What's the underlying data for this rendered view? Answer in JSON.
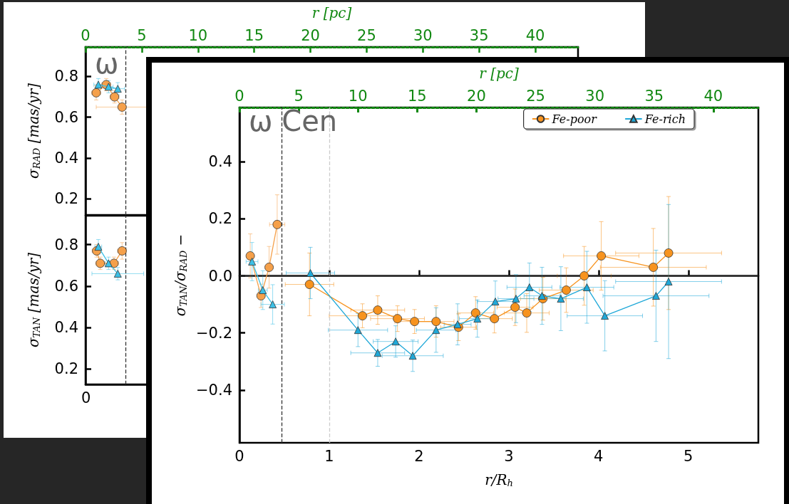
{
  "chart_data": [
    {
      "type": "line",
      "title": "ω",
      "ylabel": "σ$_{RAD}$ [mas/yr]",
      "xlabel": "r [pc]",
      "xlim": [
        0,
        43.8
      ],
      "xticks": [
        0,
        5,
        10,
        15,
        20,
        25,
        30,
        35,
        40
      ],
      "ylim": [
        0.12,
        0.945
      ],
      "yticks": [
        0.2,
        0.4,
        0.6,
        0.8
      ],
      "grid": false,
      "legend": false,
      "ref_lines": [
        {
          "axis": "x",
          "value": 3.57,
          "color": "#333333",
          "line_style": "dashed"
        }
      ],
      "series": [
        {
          "color": "#f5a04a",
          "marker": "circle",
          "x": [
            0.95,
            1.84,
            2.58,
            3.25
          ],
          "values": [
            0.72,
            0.76,
            0.7,
            0.65
          ],
          "errors": [
            0.035,
            0.03,
            0.03,
            0.035
          ],
          "xerrors": [
            0.4,
            0.4,
            0.4,
            2.3
          ]
        },
        {
          "color": "#3cc0e6",
          "marker": "triangle",
          "x": [
            1.14,
            2.05,
            2.87
          ],
          "values": [
            0.76,
            0.75,
            0.74
          ],
          "errors": [
            0.03,
            0.03,
            0.03
          ],
          "xerrors": [
            0.4,
            0.4,
            0.6
          ]
        }
      ]
    },
    {
      "type": "line",
      "ylabel": "σ$_{TAN}$ [mas/yr]",
      "xlim": [
        0,
        43.8
      ],
      "ylim": [
        0.125,
        0.94
      ],
      "yticks": [
        0.2,
        0.4,
        0.6,
        0.8
      ],
      "tick_labels": "y",
      "grid": false,
      "legend": false,
      "annotations": [
        "0"
      ],
      "ref_lines": [
        {
          "axis": "x",
          "value": 3.57,
          "color": "#333333",
          "line_style": "dashed"
        }
      ],
      "series": [
        {
          "color": "#f5a04a",
          "marker": "circle",
          "x": [
            0.99,
            1.31,
            2.53,
            3.25
          ],
          "values": [
            0.77,
            0.71,
            0.71,
            0.77
          ],
          "errors": [
            0.03,
            0.03,
            0.03,
            0.04
          ],
          "xerrors": [
            0.4,
            0.4,
            0.4,
            0.4
          ]
        },
        {
          "color": "#3cc0e6",
          "marker": "triangle",
          "x": [
            1.14,
            2.05,
            2.87
          ],
          "values": [
            0.79,
            0.71,
            0.66
          ],
          "errors": [
            0.035,
            0.03,
            0.03
          ],
          "xerrors": [
            0.3,
            0.3,
            2.3
          ]
        }
      ]
    },
    {
      "type": "line",
      "title": "ω Cen",
      "xlabel": "r/R$_{h}$",
      "ylabel": "σ$_{TAN}$/σ$_{RAD}$ −",
      "x2label": "r [pc]",
      "xlim": [
        0,
        5.78
      ],
      "xticks": [
        0,
        1,
        2,
        3,
        4,
        5
      ],
      "x2lim": [
        0,
        43.8
      ],
      "x2ticks": [
        0,
        5,
        10,
        15,
        20,
        25,
        30,
        35,
        40
      ],
      "ylim": [
        -0.585,
        0.59
      ],
      "yticks": [
        {
          "value": -0.4,
          "label": "−0.4"
        },
        {
          "value": -0.2,
          "label": "−0.2"
        },
        {
          "value": 0,
          "label": "0.0"
        },
        {
          "value": 0.2,
          "label": "0.2"
        },
        {
          "value": 0.4,
          "label": "0.4"
        }
      ],
      "grid": false,
      "legend": "top right",
      "ref_lines": [
        {
          "axis": "x",
          "value": 0.47,
          "color": "#333333",
          "line_style": "dashed"
        },
        {
          "axis": "x",
          "value": 1,
          "color": "#cccccc",
          "line_style": "dashed"
        },
        {
          "axis": "y",
          "value": 0,
          "color": "#333333",
          "line_style": "solid"
        }
      ],
      "series": [
        {
          "color": "#f5a04a",
          "marker": "circle",
          "x": [
            0.12,
            0.24,
            0.33,
            0.42
          ],
          "values": [
            0.07,
            -0.07,
            0.03,
            0.18
          ],
          "errors": [
            0.077,
            0.041,
            0.073,
            0.104
          ],
          "xerrors": [
            0.03,
            0.03,
            0.03,
            0.085
          ]
        },
        {
          "color": "#3cc0e6",
          "marker": "triangle",
          "x": [
            0.14,
            0.26,
            0.37
          ],
          "values": [
            0.05,
            -0.05,
            -0.1
          ],
          "errors": [
            0.067,
            0.068,
            0.069
          ],
          "xerrors": [
            0.066,
            0.05,
            0.13
          ]
        },
        {
          "name": "Fe-poor",
          "color": "#f7931e",
          "marker": "circle",
          "x": [
            0.78,
            1.37,
            1.54,
            1.76,
            1.95,
            2.19,
            2.44,
            2.63,
            2.84,
            3.07,
            3.2,
            3.38,
            3.64,
            3.84,
            4.03,
            4.61,
            4.78
          ],
          "values": [
            -0.03,
            -0.14,
            -0.12,
            -0.15,
            -0.16,
            -0.16,
            -0.18,
            -0.13,
            -0.15,
            -0.11,
            -0.13,
            -0.08,
            -0.05,
            0.0,
            0.07,
            0.03,
            0.08
          ],
          "errors": [
            0.11,
            0.042,
            0.05,
            0.045,
            0.042,
            0.055,
            0.047,
            0.057,
            0.05,
            0.064,
            0.068,
            0.075,
            0.078,
            0.103,
            0.12,
            0.136,
            0.198
          ],
          "xerrors": [
            0.27,
            0.37,
            0.3,
            0.3,
            0.22,
            0.2,
            0.2,
            0.2,
            0.2,
            0.2,
            0.25,
            0.25,
            0.3,
            0.3,
            0.42,
            0.59,
            0.59
          ]
        },
        {
          "name": "Fe-rich",
          "color": "#1fa8d8",
          "marker": "triangle",
          "x": [
            0.79,
            1.32,
            1.54,
            1.74,
            1.93,
            2.19,
            2.43,
            2.65,
            2.85,
            3.08,
            3.23,
            3.37,
            3.58,
            3.87,
            4.07,
            4.64,
            4.78
          ],
          "values": [
            0.01,
            -0.19,
            -0.27,
            -0.23,
            -0.28,
            -0.19,
            -0.17,
            -0.15,
            -0.09,
            -0.08,
            -0.04,
            -0.07,
            -0.08,
            -0.04,
            -0.14,
            -0.07,
            -0.02
          ],
          "errors": [
            0.09,
            0.058,
            0.047,
            0.055,
            0.055,
            0.078,
            0.072,
            0.065,
            0.072,
            0.084,
            0.085,
            0.1,
            0.112,
            0.126,
            0.123,
            0.16,
            0.27
          ],
          "xerrors": [
            0.27,
            0.33,
            0.3,
            0.25,
            0.34,
            0.22,
            0.15,
            0.2,
            0.2,
            0.2,
            0.25,
            0.2,
            0.25,
            0.3,
            0.42,
            0.59,
            0.59
          ]
        }
      ]
    }
  ]
}
